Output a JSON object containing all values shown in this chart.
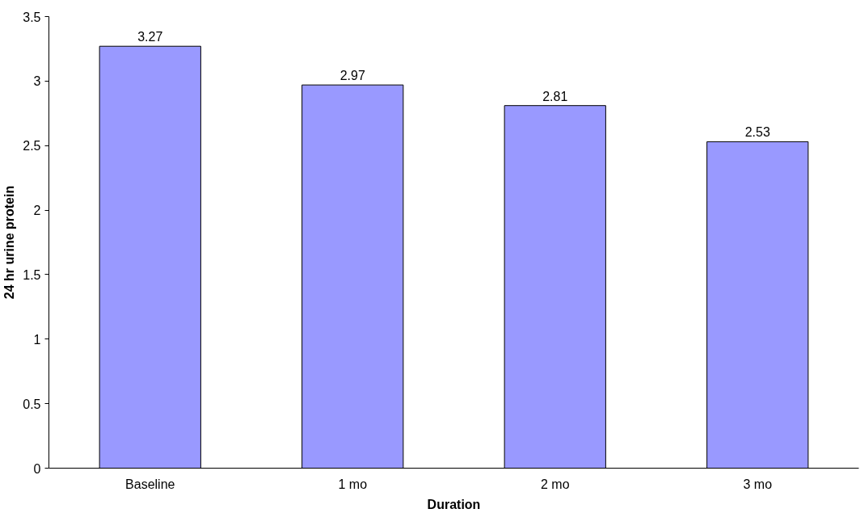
{
  "chart_data": {
    "type": "bar",
    "xlabel": "Duration",
    "ylabel": "24 hr urine protein",
    "categories": [
      "Baseline",
      "1 mo",
      "2 mo",
      "3 mo"
    ],
    "values": [
      3.27,
      2.97,
      2.81,
      2.53
    ],
    "color": "#9999ff",
    "ylim": [
      0,
      3.5
    ],
    "yticks": [
      0,
      0.5,
      1,
      1.5,
      2,
      2.5,
      3,
      3.5
    ],
    "data_labels": true,
    "grid": false
  }
}
